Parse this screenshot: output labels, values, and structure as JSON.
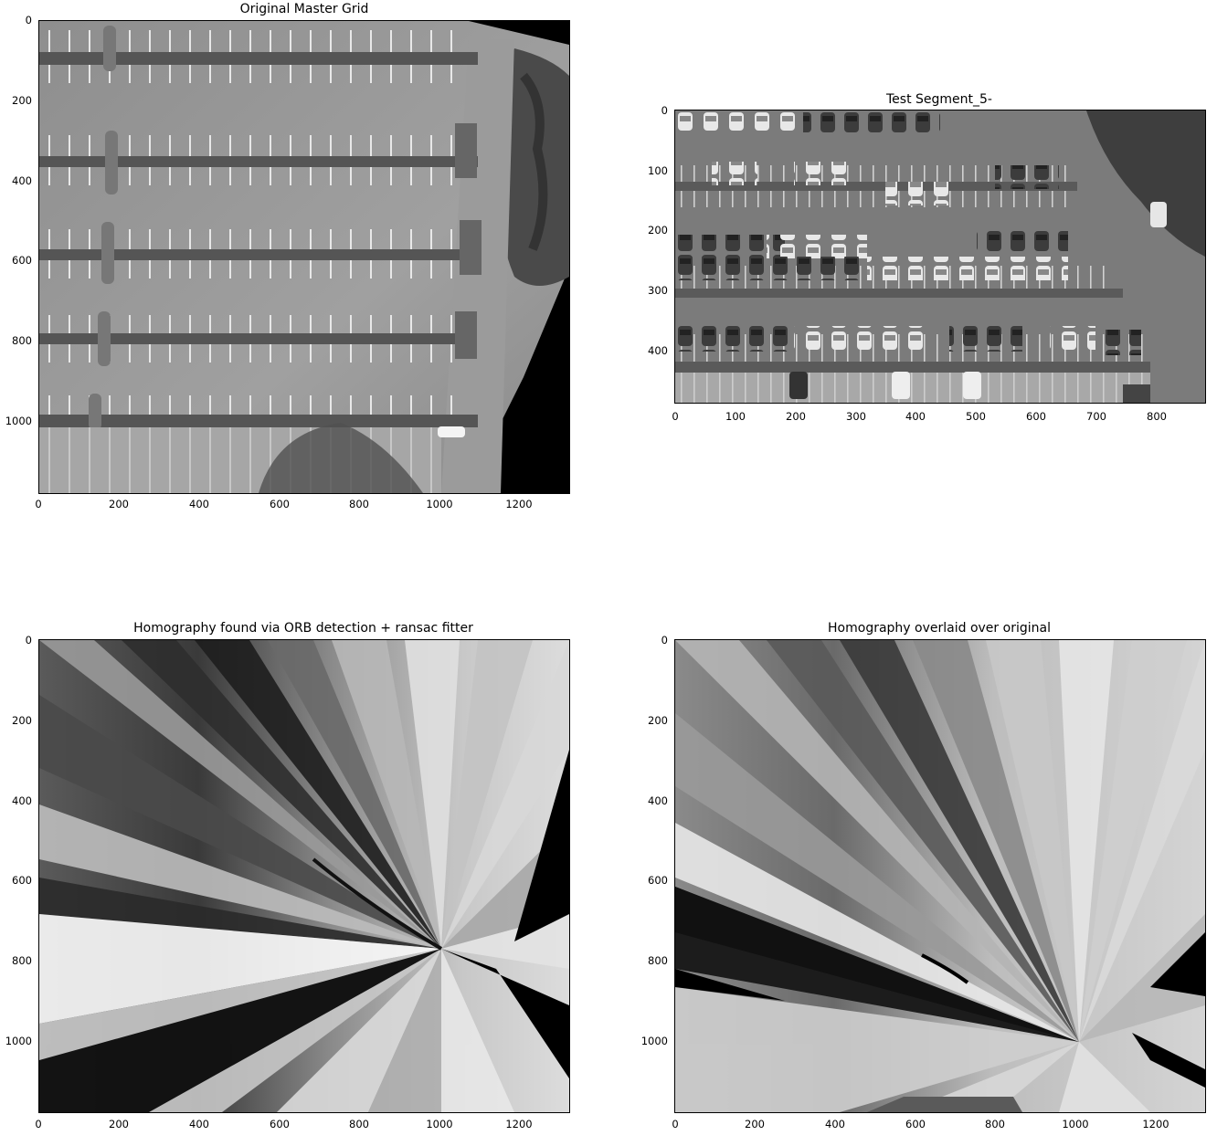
{
  "panels": {
    "top_left": {
      "title": "Original Master Grid",
      "x_ticks": [
        "0",
        "200",
        "400",
        "600",
        "800",
        "1000",
        "1200"
      ],
      "y_ticks": [
        "0",
        "200",
        "400",
        "600",
        "800",
        "1000"
      ]
    },
    "top_right": {
      "title": "Test Segment_5-",
      "x_ticks": [
        "0",
        "100",
        "200",
        "300",
        "400",
        "500",
        "600",
        "700",
        "800"
      ],
      "y_ticks": [
        "0",
        "100",
        "200",
        "300",
        "400"
      ]
    },
    "bottom_left": {
      "title": "Homography found via ORB detection + ransac fitter",
      "x_ticks": [
        "0",
        "200",
        "400",
        "600",
        "800",
        "1000",
        "1200"
      ],
      "y_ticks": [
        "0",
        "200",
        "400",
        "600",
        "800",
        "1000"
      ]
    },
    "bottom_right": {
      "title": "Homography overlaid over original",
      "x_ticks": [
        "0",
        "200",
        "400",
        "600",
        "800",
        "1000",
        "1200"
      ],
      "y_ticks": [
        "0",
        "200",
        "400",
        "600",
        "800",
        "1000"
      ]
    }
  }
}
